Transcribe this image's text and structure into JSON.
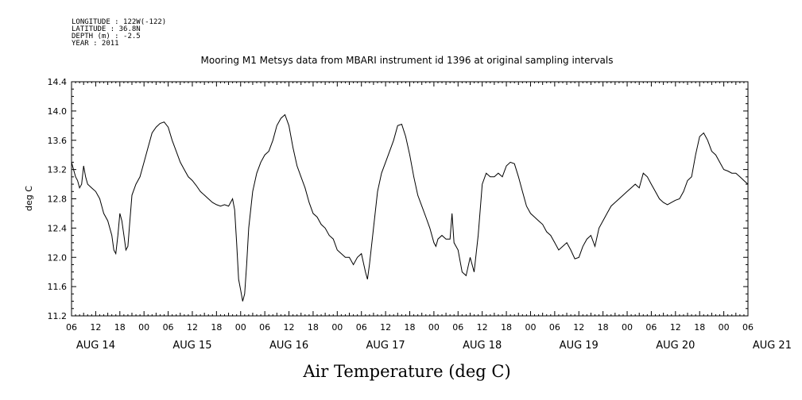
{
  "header": {
    "longitude": "LONGITUDE : 122W(-122)",
    "latitude": "LATITUDE : 36.8N",
    "depth": "DEPTH (m) : -2.5",
    "year": "YEAR : 2011"
  },
  "chart_data": {
    "type": "line",
    "title": "Mooring M1 Metsys data from MBARI instrument id 1396 at original sampling intervals",
    "xlabel": "Air Temperature (deg C)",
    "ylabel": "deg C",
    "ylim": [
      11.2,
      14.4
    ],
    "yticks": [
      "11.2",
      "11.6",
      "12.0",
      "12.4",
      "12.8",
      "13.2",
      "13.6",
      "14.0",
      "14.4"
    ],
    "x_unit": "hours since AUG 13 18:00",
    "xlim": [
      12,
      180
    ],
    "hour_tick_labels": [
      "06",
      "12",
      "18",
      "00",
      "06",
      "12",
      "18",
      "00",
      "06",
      "12",
      "18",
      "00",
      "06",
      "12",
      "18",
      "00",
      "06",
      "12",
      "18",
      "00",
      "06",
      "12",
      "18",
      "00",
      "06",
      "12",
      "18",
      "00",
      "06"
    ],
    "day_labels": [
      "AUG 14",
      "AUG 15",
      "AUG 16",
      "AUG 17",
      "AUG 18",
      "AUG 19",
      "AUG 20",
      "AUG 21"
    ],
    "grid": false,
    "series": [
      {
        "color": "#000000",
        "points": [
          [
            12,
            13.3
          ],
          [
            12.5,
            13.2
          ],
          [
            13,
            13.1
          ],
          [
            13.5,
            13.05
          ],
          [
            14,
            12.95
          ],
          [
            14.5,
            13.0
          ],
          [
            15,
            13.25
          ],
          [
            15.5,
            13.1
          ],
          [
            16,
            13.0
          ],
          [
            17,
            12.95
          ],
          [
            18,
            12.9
          ],
          [
            19,
            12.8
          ],
          [
            20,
            12.6
          ],
          [
            21,
            12.5
          ],
          [
            22,
            12.3
          ],
          [
            22.5,
            12.1
          ],
          [
            23,
            12.05
          ],
          [
            23.5,
            12.3
          ],
          [
            24,
            12.6
          ],
          [
            24.5,
            12.5
          ],
          [
            25,
            12.3
          ],
          [
            25.5,
            12.1
          ],
          [
            26,
            12.15
          ],
          [
            26.5,
            12.5
          ],
          [
            27,
            12.85
          ],
          [
            28,
            13.0
          ],
          [
            29,
            13.1
          ],
          [
            30,
            13.3
          ],
          [
            31,
            13.5
          ],
          [
            32,
            13.7
          ],
          [
            33,
            13.78
          ],
          [
            34,
            13.83
          ],
          [
            35,
            13.85
          ],
          [
            36,
            13.78
          ],
          [
            37,
            13.6
          ],
          [
            38,
            13.45
          ],
          [
            39,
            13.3
          ],
          [
            40,
            13.2
          ],
          [
            41,
            13.1
          ],
          [
            42,
            13.05
          ],
          [
            43,
            12.98
          ],
          [
            44,
            12.9
          ],
          [
            45,
            12.85
          ],
          [
            46,
            12.8
          ],
          [
            47,
            12.75
          ],
          [
            48,
            12.72
          ],
          [
            49,
            12.7
          ],
          [
            50,
            12.72
          ],
          [
            51,
            12.7
          ],
          [
            52,
            12.8
          ],
          [
            52.5,
            12.65
          ],
          [
            53,
            12.2
          ],
          [
            53.5,
            11.7
          ],
          [
            54,
            11.55
          ],
          [
            54.5,
            11.4
          ],
          [
            55,
            11.5
          ],
          [
            55.5,
            11.9
          ],
          [
            56,
            12.4
          ],
          [
            57,
            12.9
          ],
          [
            58,
            13.15
          ],
          [
            59,
            13.3
          ],
          [
            60,
            13.4
          ],
          [
            61,
            13.45
          ],
          [
            62,
            13.6
          ],
          [
            63,
            13.8
          ],
          [
            64,
            13.9
          ],
          [
            65,
            13.95
          ],
          [
            66,
            13.8
          ],
          [
            67,
            13.5
          ],
          [
            68,
            13.25
          ],
          [
            69,
            13.1
          ],
          [
            70,
            12.95
          ],
          [
            71,
            12.75
          ],
          [
            72,
            12.6
          ],
          [
            73,
            12.55
          ],
          [
            74,
            12.45
          ],
          [
            75,
            12.4
          ],
          [
            76,
            12.3
          ],
          [
            77,
            12.25
          ],
          [
            78,
            12.1
          ],
          [
            79,
            12.05
          ],
          [
            80,
            12.0
          ],
          [
            81,
            12.0
          ],
          [
            82,
            11.9
          ],
          [
            83,
            12.0
          ],
          [
            84,
            12.05
          ],
          [
            85,
            11.8
          ],
          [
            85.5,
            11.7
          ],
          [
            86,
            11.9
          ],
          [
            87,
            12.4
          ],
          [
            88,
            12.9
          ],
          [
            89,
            13.15
          ],
          [
            90,
            13.3
          ],
          [
            91,
            13.45
          ],
          [
            92,
            13.6
          ],
          [
            93,
            13.8
          ],
          [
            94,
            13.82
          ],
          [
            95,
            13.65
          ],
          [
            96,
            13.4
          ],
          [
            97,
            13.1
          ],
          [
            98,
            12.85
          ],
          [
            99,
            12.7
          ],
          [
            100,
            12.55
          ],
          [
            101,
            12.4
          ],
          [
            102,
            12.2
          ],
          [
            102.5,
            12.15
          ],
          [
            103,
            12.25
          ],
          [
            104,
            12.3
          ],
          [
            105,
            12.25
          ],
          [
            106,
            12.25
          ],
          [
            106.5,
            12.6
          ],
          [
            107,
            12.2
          ],
          [
            108,
            12.1
          ],
          [
            109,
            11.8
          ],
          [
            110,
            11.75
          ],
          [
            111,
            12.0
          ],
          [
            112,
            11.8
          ],
          [
            113,
            12.3
          ],
          [
            114,
            13.0
          ],
          [
            115,
            13.15
          ],
          [
            116,
            13.1
          ],
          [
            117,
            13.1
          ],
          [
            118,
            13.15
          ],
          [
            119,
            13.1
          ],
          [
            120,
            13.25
          ],
          [
            121,
            13.3
          ],
          [
            122,
            13.28
          ],
          [
            123,
            13.1
          ],
          [
            124,
            12.9
          ],
          [
            125,
            12.7
          ],
          [
            126,
            12.6
          ],
          [
            127,
            12.55
          ],
          [
            128,
            12.5
          ],
          [
            129,
            12.45
          ],
          [
            130,
            12.35
          ],
          [
            131,
            12.3
          ],
          [
            132,
            12.2
          ],
          [
            133,
            12.1
          ],
          [
            134,
            12.15
          ],
          [
            135,
            12.2
          ],
          [
            136,
            12.1
          ],
          [
            137,
            11.98
          ],
          [
            138,
            12.0
          ],
          [
            139,
            12.15
          ],
          [
            140,
            12.25
          ],
          [
            141,
            12.3
          ],
          [
            142,
            12.15
          ],
          [
            143,
            12.4
          ],
          [
            144,
            12.5
          ],
          [
            145,
            12.6
          ],
          [
            146,
            12.7
          ],
          [
            147,
            12.75
          ],
          [
            148,
            12.8
          ],
          [
            149,
            12.85
          ],
          [
            150,
            12.9
          ],
          [
            151,
            12.95
          ],
          [
            152,
            13.0
          ],
          [
            153,
            12.95
          ],
          [
            154,
            13.15
          ],
          [
            155,
            13.1
          ],
          [
            156,
            13.0
          ],
          [
            157,
            12.9
          ],
          [
            158,
            12.8
          ],
          [
            159,
            12.75
          ],
          [
            160,
            12.72
          ],
          [
            161,
            12.75
          ],
          [
            162,
            12.78
          ],
          [
            163,
            12.8
          ],
          [
            164,
            12.9
          ],
          [
            165,
            13.05
          ],
          [
            166,
            13.1
          ],
          [
            167,
            13.4
          ],
          [
            168,
            13.65
          ],
          [
            169,
            13.7
          ],
          [
            170,
            13.6
          ],
          [
            171,
            13.45
          ],
          [
            172,
            13.4
          ],
          [
            173,
            13.3
          ],
          [
            174,
            13.2
          ],
          [
            175,
            13.18
          ],
          [
            176,
            13.15
          ],
          [
            177,
            13.15
          ],
          [
            178,
            13.1
          ],
          [
            179,
            13.05
          ],
          [
            180,
            13.0
          ]
        ]
      }
    ]
  }
}
